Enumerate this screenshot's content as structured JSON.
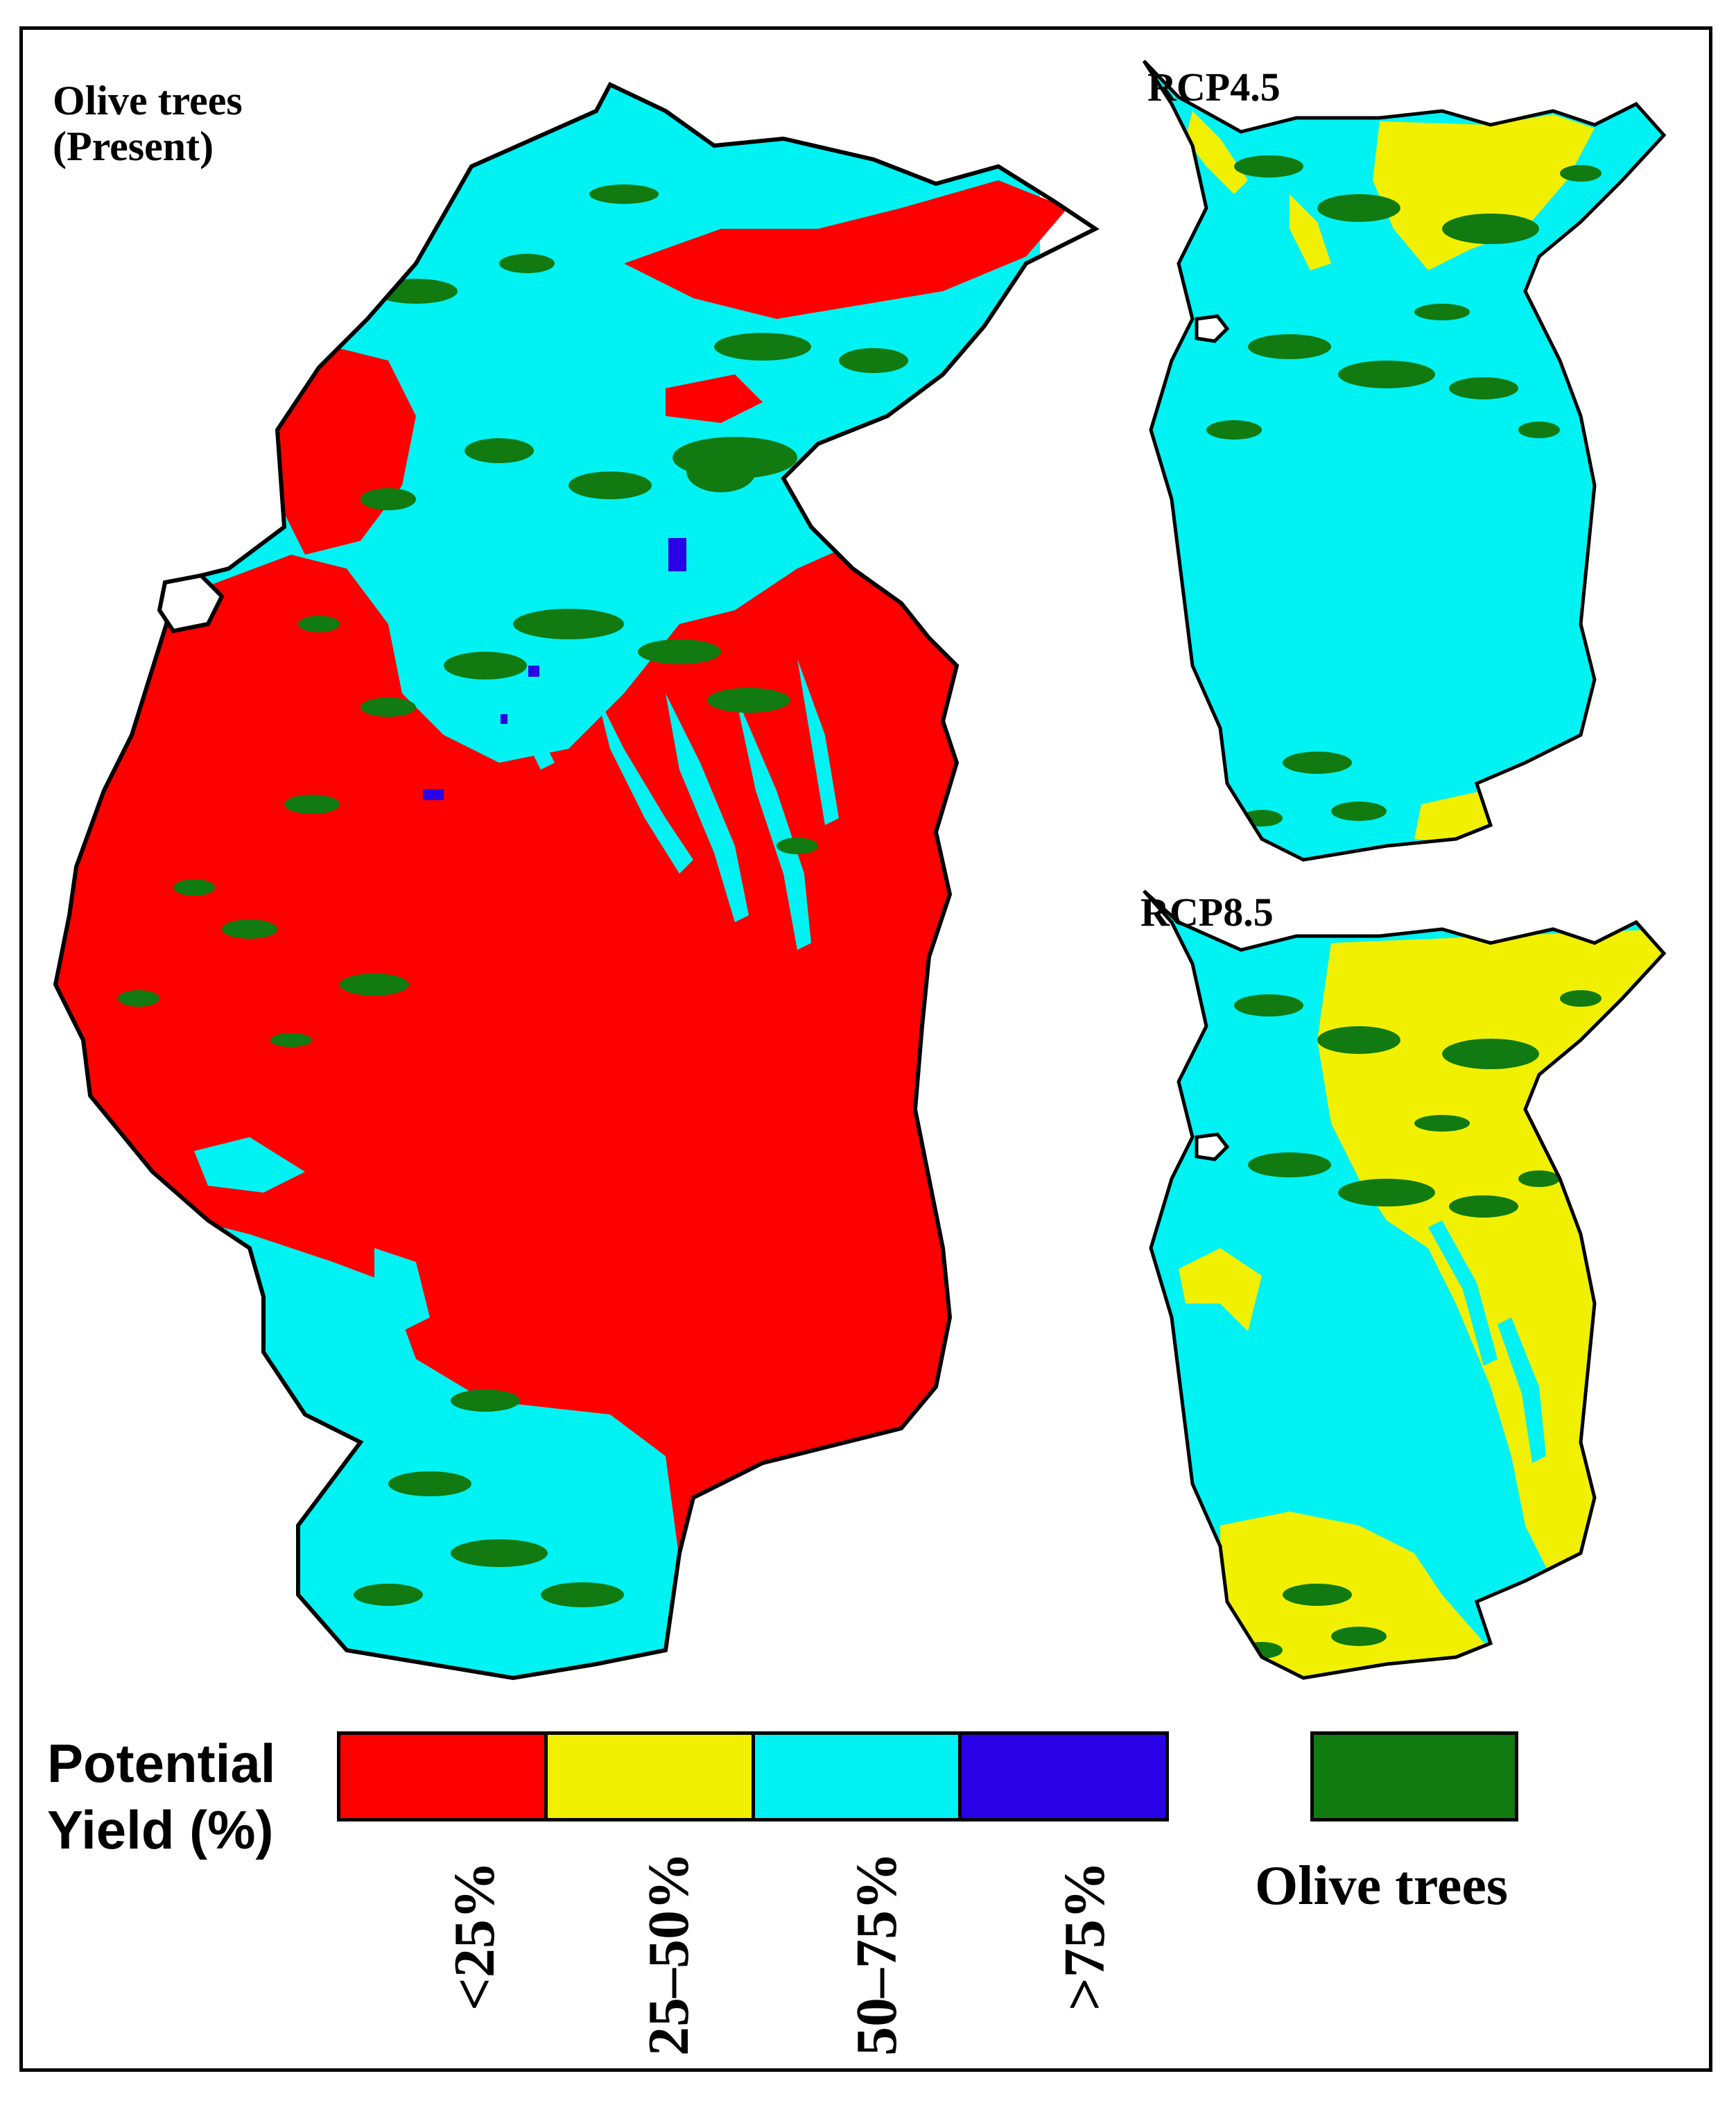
{
  "panels": {
    "present": {
      "title_line1": "Olive trees",
      "title_line2": "(Present)"
    },
    "rcp45": {
      "title": "RCP4.5"
    },
    "rcp85": {
      "title": "RCP8.5"
    }
  },
  "legend": {
    "title_line1": "Potential",
    "title_line2": "Yield (%)",
    "classes": [
      {
        "label": "<25%",
        "color": "#ff0000"
      },
      {
        "label": "25–50%",
        "color": "#f0f000"
      },
      {
        "label": "50–75%",
        "color": "#00f2f2"
      },
      {
        "label": ">75%",
        "color": "#2a00e6"
      }
    ],
    "olive": {
      "label": "Olive trees",
      "color": "#117a11"
    }
  },
  "colors": {
    "outline": "#000000",
    "olive": "#117a11",
    "red": "#ff0000",
    "yellow": "#f0f000",
    "cyan": "#00f2f2",
    "blue": "#2a00e6"
  }
}
